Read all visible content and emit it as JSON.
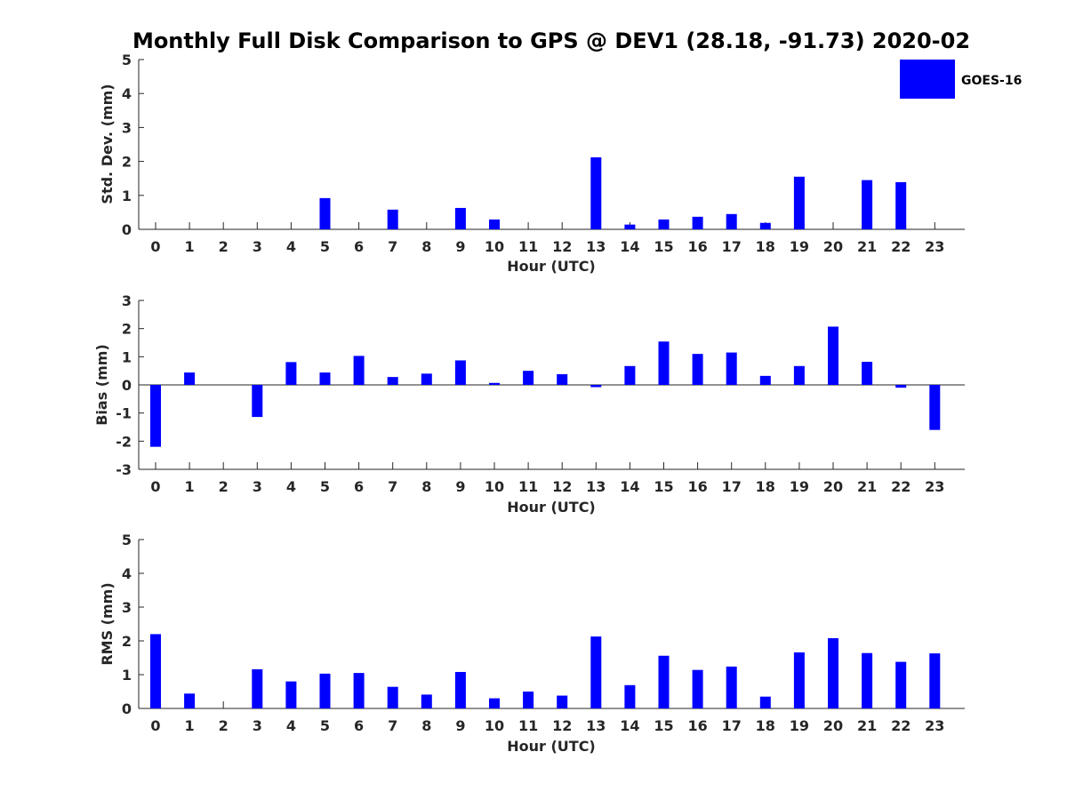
{
  "chart_data": [
    {
      "type": "bar",
      "title": "Monthly Full Disk Comparison to GPS @ DEV1 (28.18, -91.73) 2020-02",
      "xlabel": "Hour (UTC)",
      "ylabel": "Std. Dev. (mm)",
      "ylim": [
        0,
        5
      ],
      "yticks": [
        0,
        1,
        2,
        3,
        4,
        5
      ],
      "categories": [
        "0",
        "1",
        "2",
        "3",
        "4",
        "5",
        "6",
        "7",
        "8",
        "9",
        "10",
        "11",
        "12",
        "13",
        "14",
        "15",
        "16",
        "17",
        "18",
        "19",
        "20",
        "21",
        "22",
        "23"
      ],
      "series": [
        {
          "name": "GOES-16",
          "color": "#0000ff",
          "values": [
            0,
            0,
            0,
            0,
            0,
            0.92,
            0,
            0.58,
            0,
            0.63,
            0.29,
            0,
            0,
            2.12,
            0.14,
            0.29,
            0.37,
            0.45,
            0.19,
            1.55,
            0,
            1.45,
            1.39,
            0
          ]
        }
      ],
      "legend": {
        "position": "top-right",
        "entries": [
          "GOES-16"
        ]
      }
    },
    {
      "type": "bar",
      "title": "",
      "xlabel": "Hour (UTC)",
      "ylabel": "Bias (mm)",
      "ylim": [
        -3,
        3
      ],
      "yticks": [
        -3,
        -2,
        -1,
        0,
        1,
        2,
        3
      ],
      "categories": [
        "0",
        "1",
        "2",
        "3",
        "4",
        "5",
        "6",
        "7",
        "8",
        "9",
        "10",
        "11",
        "12",
        "13",
        "14",
        "15",
        "16",
        "17",
        "18",
        "19",
        "20",
        "21",
        "22",
        "23"
      ],
      "series": [
        {
          "name": "GOES-16",
          "color": "#0000ff",
          "values": [
            -2.2,
            0.44,
            0,
            -1.14,
            0.81,
            0.44,
            1.03,
            0.28,
            0.4,
            0.87,
            0.07,
            0.5,
            0.38,
            -0.08,
            0.67,
            1.54,
            1.1,
            1.15,
            0.32,
            0.67,
            2.07,
            0.82,
            -0.1,
            -1.6
          ]
        }
      ]
    },
    {
      "type": "bar",
      "title": "",
      "xlabel": "Hour (UTC)",
      "ylabel": "RMS (mm)",
      "ylim": [
        0,
        5
      ],
      "yticks": [
        0,
        1,
        2,
        3,
        4,
        5
      ],
      "categories": [
        "0",
        "1",
        "2",
        "3",
        "4",
        "5",
        "6",
        "7",
        "8",
        "9",
        "10",
        "11",
        "12",
        "13",
        "14",
        "15",
        "16",
        "17",
        "18",
        "19",
        "20",
        "21",
        "22",
        "23"
      ],
      "series": [
        {
          "name": "GOES-16",
          "color": "#0000ff",
          "values": [
            2.2,
            0.44,
            0,
            1.16,
            0.8,
            1.03,
            1.05,
            0.64,
            0.41,
            1.08,
            0.3,
            0.5,
            0.38,
            2.13,
            0.69,
            1.56,
            1.14,
            1.24,
            0.35,
            1.66,
            2.08,
            1.64,
            1.38,
            1.63
          ]
        }
      ]
    }
  ]
}
